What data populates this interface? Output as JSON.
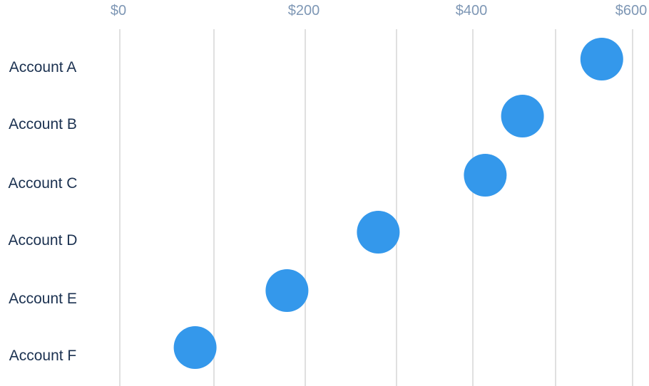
{
  "chart_data": {
    "type": "scatter",
    "title": "",
    "xlabel": "",
    "ylabel": "",
    "xlim": [
      0,
      600
    ],
    "x_ticks": [
      {
        "value": 0,
        "label": "$0"
      },
      {
        "value": 200,
        "label": "$200"
      },
      {
        "value": 400,
        "label": "$400"
      },
      {
        "value": 600,
        "label": "$600"
      }
    ],
    "gridlines": [
      0,
      100,
      200,
      300,
      400,
      500,
      600
    ],
    "grid": true,
    "categories": [
      "Account A",
      "Account B",
      "Account C",
      "Account D",
      "Account E",
      "Account F"
    ],
    "values": [
      560,
      460,
      415,
      280,
      180,
      80
    ],
    "color": "#3498eb",
    "grid_color": "#e0e0e0"
  }
}
